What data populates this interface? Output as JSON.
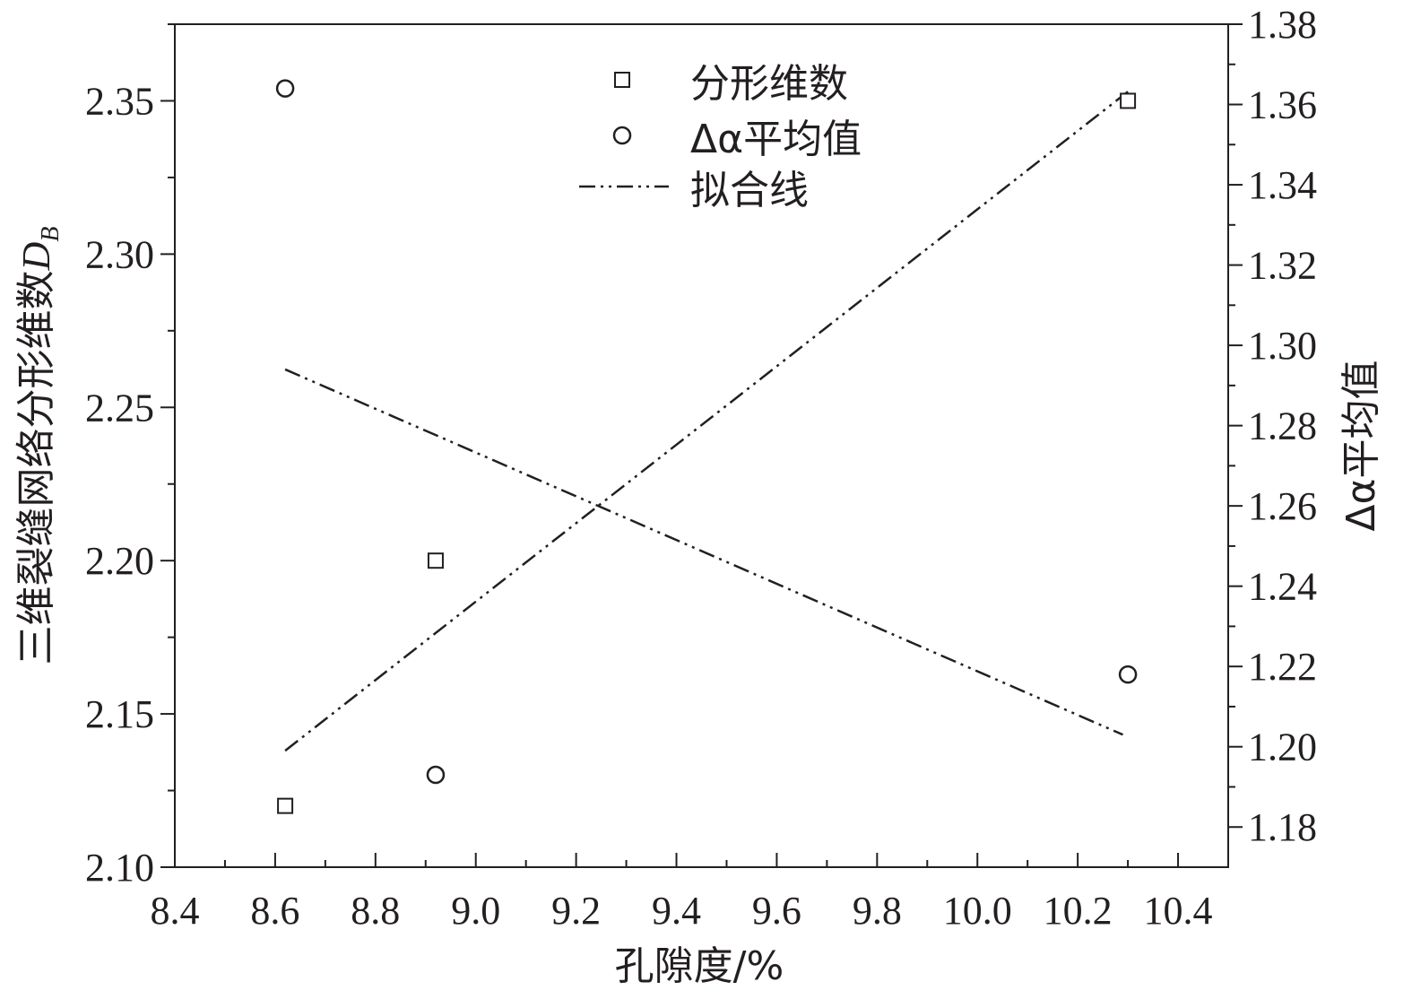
{
  "chart_data": {
    "type": "scatter",
    "xlabel": "孔隙度/%",
    "ylabel_left": "三维裂缝网络分形维数",
    "ylabel_left_symbol": "D",
    "ylabel_left_subscript": "B",
    "ylabel_right": "Δα平均值",
    "xlim": [
      8.4,
      10.5
    ],
    "ylim_left": [
      2.1,
      2.375
    ],
    "ylim_right": [
      1.17,
      1.38
    ],
    "xticks": [
      8.4,
      8.6,
      8.8,
      9.0,
      9.2,
      9.4,
      9.6,
      9.8,
      10.0,
      10.2,
      10.4
    ],
    "xtick_labels": [
      "8.4",
      "8.6",
      "8.8",
      "9.0",
      "9.2",
      "9.4",
      "9.6",
      "9.8",
      "10.0",
      "10.2",
      "10.4"
    ],
    "yticks_left": [
      2.1,
      2.15,
      2.2,
      2.25,
      2.3,
      2.35
    ],
    "ytick_labels_left": [
      "2.10",
      "2.15",
      "2.20",
      "2.25",
      "2.30",
      "2.35"
    ],
    "yticks_right": [
      1.18,
      1.2,
      1.22,
      1.24,
      1.26,
      1.28,
      1.3,
      1.32,
      1.34,
      1.36,
      1.38
    ],
    "ytick_labels_right": [
      "1.18",
      "1.20",
      "1.22",
      "1.24",
      "1.26",
      "1.28",
      "1.30",
      "1.32",
      "1.34",
      "1.36",
      "1.38"
    ],
    "grid": false,
    "legend_position": "top-center",
    "series": [
      {
        "name": "分形维数",
        "axis": "left",
        "marker": "square",
        "points": [
          [
            8.62,
            2.12
          ],
          [
            8.92,
            2.2
          ],
          [
            10.3,
            2.35
          ]
        ]
      },
      {
        "name": "Δα平均值",
        "axis": "right",
        "marker": "circle",
        "points": [
          [
            8.62,
            1.364
          ],
          [
            8.92,
            1.193
          ],
          [
            10.3,
            1.218
          ]
        ]
      }
    ],
    "fit_lines": [
      {
        "axis": "left",
        "points": [
          [
            8.62,
            2.138
          ],
          [
            10.3,
            2.353
          ]
        ]
      },
      {
        "axis": "right",
        "points": [
          [
            8.62,
            1.294
          ],
          [
            10.29,
            1.203
          ]
        ]
      }
    ],
    "legend": [
      {
        "label": "分形维数",
        "symbol": "square"
      },
      {
        "label": "Δα平均值",
        "symbol": "circle"
      },
      {
        "label": "拟合线",
        "symbol": "dash-dot-dot"
      }
    ],
    "colors": {
      "ink": "#231f20",
      "background": "#ffffff"
    }
  }
}
